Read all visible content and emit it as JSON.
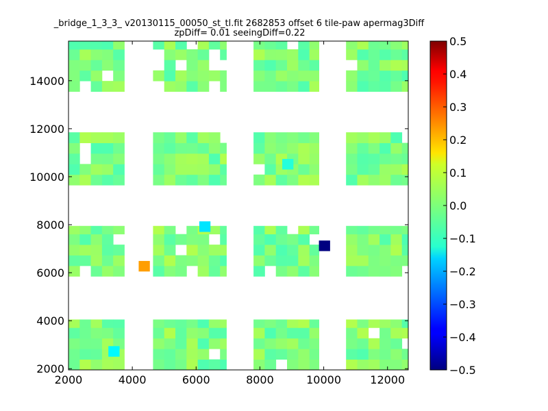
{
  "chart_data": {
    "type": "heatmap",
    "title": "_bridge_1_3_3_ v20130115_00050_st_tl.fit 2682853 offset 6 tile-paw apermag3Diff",
    "subtitle": "zpDiff= 0.01 seeingDiff=0.22",
    "xlabel": "",
    "ylabel": "",
    "xlim": [
      2000,
      12650
    ],
    "ylim": [
      1950,
      15650
    ],
    "xticks": [
      "2000",
      "4000",
      "6000",
      "8000",
      "10000",
      "12000"
    ],
    "yticks": [
      "2000",
      "4000",
      "6000",
      "8000",
      "10000",
      "12000",
      "14000"
    ],
    "grid": false,
    "colormap": "jet",
    "colorbar": {
      "vmin": -0.5,
      "vmax": 0.5,
      "ticks": [
        "0.5",
        "0.4",
        "0.3",
        "0.2",
        "0.1",
        "0.0",
        "−0.1",
        "−0.2",
        "−0.3",
        "−0.4",
        "−0.5"
      ]
    },
    "cell_size": [
      350,
      440
    ],
    "column_groups_x": [
      [
        2000,
        3750
      ],
      [
        4650,
        6950
      ],
      [
        7800,
        9850
      ],
      [
        10700,
        12650
      ]
    ],
    "row_groups_y": [
      [
        1950,
        4050
      ],
      [
        5850,
        7950
      ],
      [
        9650,
        11850
      ],
      [
        13550,
        15650
      ]
    ],
    "outliers": [
      {
        "x": 4200,
        "y": 6050,
        "value": 0.22
      },
      {
        "x": 6100,
        "y": 7700,
        "value": -0.15
      },
      {
        "x": 9850,
        "y": 6900,
        "value": -0.5
      },
      {
        "x": 3250,
        "y": 2500,
        "value": -0.13
      },
      {
        "x": 8700,
        "y": 10300,
        "value": -0.09
      }
    ]
  }
}
